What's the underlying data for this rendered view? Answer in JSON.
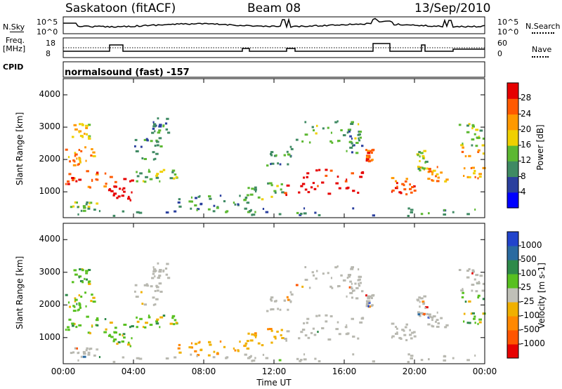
{
  "header": {
    "station": "Saskatoon (fitACF)",
    "beam": "Beam 08",
    "date": "13/Sep/2010"
  },
  "top_panels": {
    "nsky_label": "N.Sky",
    "nsky_ticks": [
      "10^5",
      "10^0"
    ],
    "nsearch_label": "N.Search",
    "freq_label_1": "Freq.",
    "freq_label_2": "[MHz]",
    "freq_ticks": [
      "18",
      "8"
    ],
    "nave_label": "Nave",
    "nave_ticks": [
      "60",
      "0"
    ],
    "cpid_label": "CPID",
    "cpid_text": "normalsound (fast) -157"
  },
  "colors": {
    "power_scale": [
      "#0000ff",
      "#2a3f9e",
      "#3f8a63",
      "#5cb832",
      "#f0d000",
      "#ff9900",
      "#ff5a00",
      "#e60000"
    ],
    "velocity_scale": [
      "#2244cc",
      "#2a6aa0",
      "#2e8a4a",
      "#58c020",
      "#c0c0b8",
      "#f0b000",
      "#ff8800",
      "#ff5500",
      "#e60000"
    ],
    "ground_scatter": "#b8b8b0"
  },
  "chart_data": [
    {
      "type": "heatmap",
      "title": "Power",
      "ylabel": "Slant Range [km]",
      "yticks": [
        "1000",
        "2000",
        "3000",
        "4000"
      ],
      "ylim": [
        200,
        4500
      ],
      "colorbar_label": "Power [dB]",
      "colorbar_ticks": [
        "4",
        "8",
        "12",
        "16",
        "20",
        "24",
        "28"
      ]
    },
    {
      "type": "heatmap",
      "title": "Velocity",
      "ylabel": "Slant Range [km]",
      "yticks": [
        "1000",
        "2000",
        "3000",
        "4000"
      ],
      "ylim": [
        200,
        4500
      ],
      "colorbar_label": "Velocity [m s-1]",
      "colorbar_ticks": [
        "1000",
        "500",
        "100",
        "25",
        "-25",
        "-100",
        "-500",
        "-1000"
      ],
      "xlabel": "Time UT",
      "xticks": [
        "00:00",
        "04:00",
        "08:00",
        "12:00",
        "16:00",
        "20:00",
        "00:00"
      ],
      "xlim": [
        0,
        24
      ]
    }
  ]
}
